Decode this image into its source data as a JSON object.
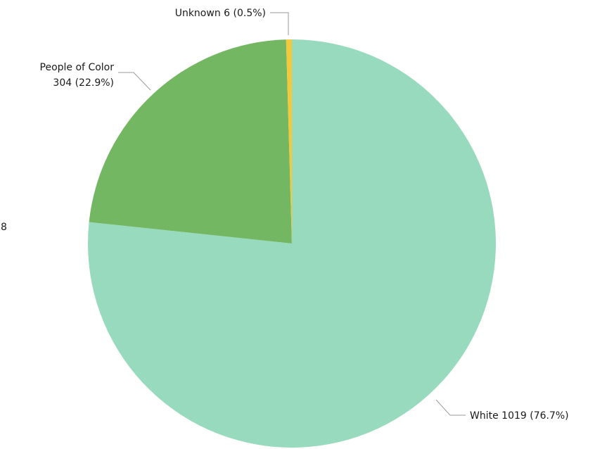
{
  "chart_data": {
    "type": "pie",
    "title": "",
    "slices": [
      {
        "name": "White",
        "value": 1019,
        "percent": "76.7%",
        "label": "White 1019 (76.7%)",
        "color": "#98dabd"
      },
      {
        "name": "People of Color",
        "value": 304,
        "percent": "22.9%",
        "label_line1": "People of Color",
        "label_line2": "304 (22.9%)",
        "color": "#74b763"
      },
      {
        "name": "Unknown",
        "value": 6,
        "percent": "0.5%",
        "label": "Unknown 6 (0.5%)",
        "color": "#f2c83c"
      }
    ],
    "partial_label": "8"
  }
}
